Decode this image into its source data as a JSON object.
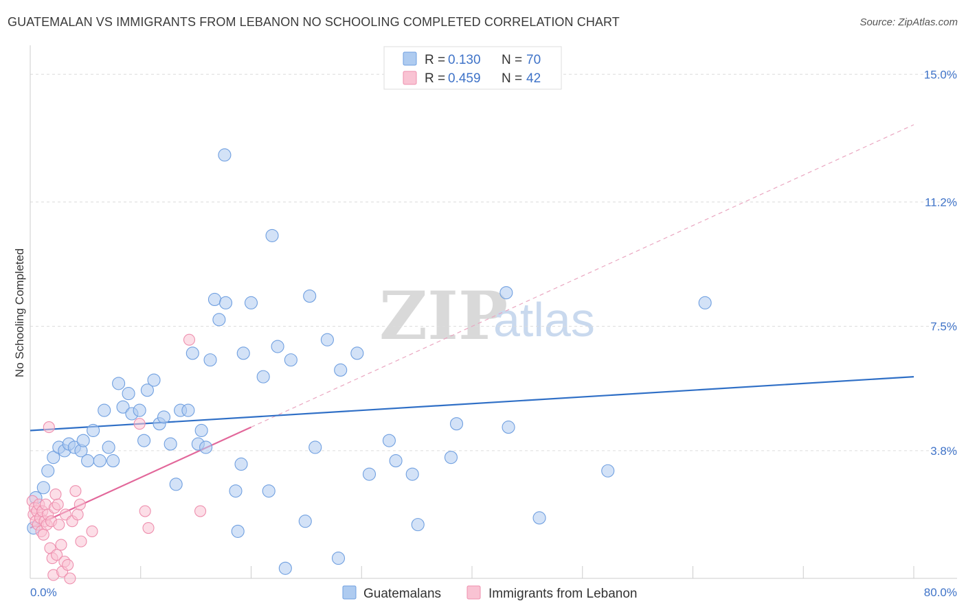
{
  "header": {
    "title": "GUATEMALAN VS IMMIGRANTS FROM LEBANON NO SCHOOLING COMPLETED CORRELATION CHART",
    "source": "Source: ZipAtlas.com"
  },
  "watermark": {
    "zip": "ZIP",
    "atlas": "atlas"
  },
  "legend": {
    "rows": [
      {
        "r_label": "R =",
        "r_value": "0.130",
        "n_label": "N =",
        "n_value": "70",
        "color": "#aecbf0",
        "stroke": "#6f9fe0"
      },
      {
        "r_label": "R =",
        "r_value": "0.459",
        "n_label": "N =",
        "n_value": "42",
        "color": "#f9c3d3",
        "stroke": "#ee8fae"
      }
    ]
  },
  "bottom_legend": [
    "Guatemalans",
    "Immigrants from Lebanon"
  ],
  "chart_data": {
    "type": "scatter",
    "ylabel": "No Schooling Completed",
    "xlim": [
      0,
      80
    ],
    "ylim": [
      0,
      15.7
    ],
    "x_tick_labels": {
      "left": "0.0%",
      "right": "80.0%"
    },
    "y_ticks": [
      {
        "value": 3.8,
        "label": "3.8%"
      },
      {
        "value": 7.5,
        "label": "7.5%"
      },
      {
        "value": 11.2,
        "label": "11.2%"
      },
      {
        "value": 15.0,
        "label": "15.0%"
      }
    ],
    "series": [
      {
        "name": "Guatemalans",
        "fill": "#aecbf0",
        "stroke": "#6f9fe0",
        "trend": {
          "x": [
            0,
            80
          ],
          "y": [
            4.4,
            6.0
          ],
          "color": "#2f6fc6",
          "style": "solid"
        },
        "points": [
          [
            0.3,
            1.5
          ],
          [
            0.5,
            2.4
          ],
          [
            1.2,
            2.7
          ],
          [
            1.6,
            3.2
          ],
          [
            2.1,
            3.6
          ],
          [
            2.6,
            3.9
          ],
          [
            3.1,
            3.8
          ],
          [
            3.5,
            4.0
          ],
          [
            4.0,
            3.9
          ],
          [
            4.6,
            3.8
          ],
          [
            4.8,
            4.1
          ],
          [
            5.2,
            3.5
          ],
          [
            5.7,
            4.4
          ],
          [
            6.3,
            3.5
          ],
          [
            6.7,
            5.0
          ],
          [
            7.1,
            3.9
          ],
          [
            7.5,
            3.5
          ],
          [
            8.0,
            5.8
          ],
          [
            8.4,
            5.1
          ],
          [
            8.9,
            5.5
          ],
          [
            9.2,
            4.9
          ],
          [
            9.9,
            5.0
          ],
          [
            10.3,
            4.1
          ],
          [
            10.6,
            5.6
          ],
          [
            11.2,
            5.9
          ],
          [
            11.7,
            4.6
          ],
          [
            12.1,
            4.8
          ],
          [
            12.7,
            4.0
          ],
          [
            13.2,
            2.8
          ],
          [
            13.6,
            5.0
          ],
          [
            14.3,
            5.0
          ],
          [
            14.7,
            6.7
          ],
          [
            15.2,
            4.0
          ],
          [
            15.5,
            4.4
          ],
          [
            15.9,
            3.9
          ],
          [
            16.3,
            6.5
          ],
          [
            16.7,
            8.3
          ],
          [
            17.1,
            7.7
          ],
          [
            17.7,
            8.2
          ],
          [
            17.6,
            12.6
          ],
          [
            18.6,
            2.6
          ],
          [
            18.8,
            1.4
          ],
          [
            19.3,
            6.7
          ],
          [
            19.1,
            3.4
          ],
          [
            20.0,
            8.2
          ],
          [
            21.1,
            6.0
          ],
          [
            21.6,
            2.6
          ],
          [
            21.9,
            10.2
          ],
          [
            22.4,
            6.9
          ],
          [
            23.1,
            0.3
          ],
          [
            23.6,
            6.5
          ],
          [
            24.9,
            1.7
          ],
          [
            25.3,
            8.4
          ],
          [
            25.8,
            3.9
          ],
          [
            26.9,
            7.1
          ],
          [
            27.9,
            0.6
          ],
          [
            28.1,
            6.2
          ],
          [
            29.6,
            6.7
          ],
          [
            30.7,
            3.1
          ],
          [
            32.5,
            4.1
          ],
          [
            33.1,
            3.5
          ],
          [
            34.6,
            3.1
          ],
          [
            35.1,
            1.6
          ],
          [
            38.1,
            3.6
          ],
          [
            38.6,
            4.6
          ],
          [
            43.1,
            8.5
          ],
          [
            43.3,
            4.5
          ],
          [
            46.1,
            1.8
          ],
          [
            52.3,
            3.2
          ],
          [
            61.1,
            8.2
          ]
        ]
      },
      {
        "name": "Immigrants from Lebanon",
        "fill": "#f9c3d3",
        "stroke": "#ee8fae",
        "trend": {
          "x": [
            0,
            20
          ],
          "y": [
            1.5,
            4.5
          ],
          "color": "#e2679a",
          "style": "solid",
          "ext_x": [
            20,
            80
          ],
          "ext_y": [
            4.5,
            13.5
          ],
          "ext_style": "dashed"
        },
        "points": [
          [
            0.2,
            2.3
          ],
          [
            0.3,
            1.9
          ],
          [
            0.4,
            2.1
          ],
          [
            0.5,
            1.7
          ],
          [
            0.6,
            2.0
          ],
          [
            0.7,
            1.6
          ],
          [
            0.8,
            2.2
          ],
          [
            0.9,
            1.8
          ],
          [
            1.0,
            1.4
          ],
          [
            1.1,
            2.0
          ],
          [
            1.2,
            1.3
          ],
          [
            1.3,
            1.7
          ],
          [
            1.4,
            2.2
          ],
          [
            1.5,
            1.6
          ],
          [
            1.6,
            1.9
          ],
          [
            1.7,
            4.5
          ],
          [
            1.8,
            0.9
          ],
          [
            1.9,
            1.7
          ],
          [
            2.0,
            0.6
          ],
          [
            2.1,
            0.1
          ],
          [
            2.2,
            2.1
          ],
          [
            2.3,
            2.5
          ],
          [
            2.4,
            0.7
          ],
          [
            2.5,
            2.2
          ],
          [
            2.6,
            1.6
          ],
          [
            2.8,
            1.0
          ],
          [
            2.9,
            0.2
          ],
          [
            3.1,
            0.5
          ],
          [
            3.2,
            1.9
          ],
          [
            3.4,
            0.4
          ],
          [
            3.6,
            0.0
          ],
          [
            3.8,
            1.7
          ],
          [
            4.1,
            2.6
          ],
          [
            4.3,
            1.9
          ],
          [
            4.5,
            2.2
          ],
          [
            4.6,
            1.1
          ],
          [
            5.6,
            1.4
          ],
          [
            9.9,
            4.6
          ],
          [
            10.4,
            2.0
          ],
          [
            10.7,
            1.5
          ],
          [
            14.4,
            7.1
          ],
          [
            15.4,
            2.0
          ]
        ]
      }
    ]
  }
}
